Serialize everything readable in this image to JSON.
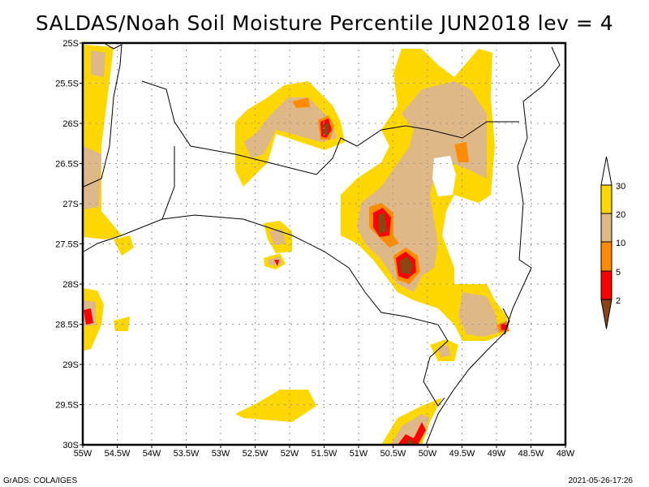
{
  "title": "SALDAS/Noah Soil Moisture Percentile JUN2018 lev = 4",
  "map": {
    "lon_range": [
      -55,
      -48
    ],
    "lat_range": [
      -30,
      -25
    ],
    "grid": "dotted, every 0.5 degree",
    "x_ticks": [
      "55W",
      "54.5W",
      "54W",
      "53.5W",
      "53W",
      "52.5W",
      "52W",
      "51.5W",
      "51W",
      "50.5W",
      "50W",
      "49.5W",
      "49W",
      "48.5W",
      "48W"
    ],
    "y_ticks": [
      "25S",
      "25.5S",
      "26S",
      "26.5S",
      "27S",
      "27.5S",
      "28S",
      "28.5S",
      "29S",
      "29.5S",
      "30S"
    ]
  },
  "colorbar": {
    "labels": [
      "2",
      "5",
      "10",
      "20",
      "30"
    ],
    "colors": {
      "lt2": "#8B4513",
      "2-5": "#FF0000",
      "5-10": "#FF8C00",
      "10-20": "#DEB887",
      "20-30": "#FFD700",
      "gt30": "#FFFFFF"
    }
  },
  "footer": {
    "left": "GrADS: COLA/IGES",
    "right": "2021-05-26-17:26"
  }
}
